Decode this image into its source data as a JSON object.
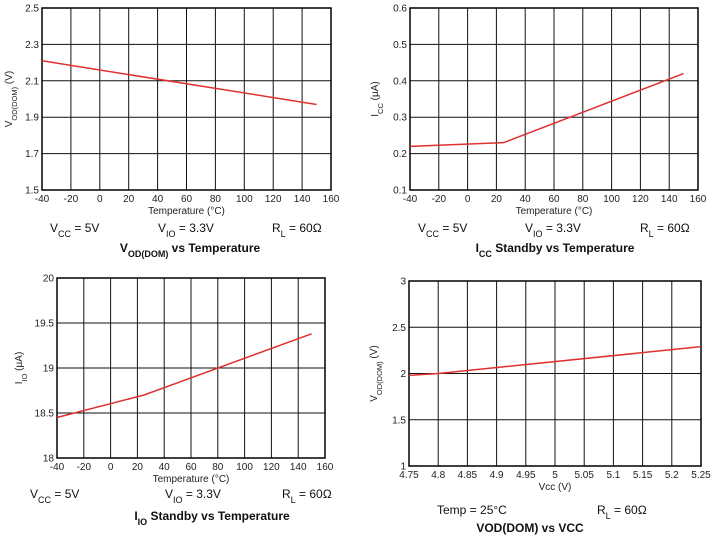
{
  "chart_data": [
    {
      "type": "line",
      "title": [
        {
          "t": "V"
        },
        {
          "t": "OD(DOM)",
          "sub": true
        },
        {
          "t": " vs Temperature"
        }
      ],
      "xlabel": [
        {
          "t": "Temperature (°C)"
        }
      ],
      "ylabel": [
        {
          "t": "V"
        },
        {
          "t": "OD(DOM)",
          "sub": true
        },
        {
          "t": " (V)"
        }
      ],
      "xlim": [
        -40,
        160
      ],
      "ylim": [
        1.5,
        2.5
      ],
      "xticks": [
        "-40",
        "-20",
        "0",
        "20",
        "40",
        "60",
        "80",
        "100",
        "120",
        "140",
        "160"
      ],
      "yticks": [
        "1.5",
        "1.7",
        "1.9",
        "2.1",
        "2.3",
        "2.5"
      ],
      "grid": true,
      "series": [
        {
          "x": [
            -40,
            150
          ],
          "y": [
            2.21,
            1.97
          ],
          "color": "#e03030"
        }
      ],
      "conditions": [
        [
          {
            "t": "V"
          },
          {
            "t": "CC",
            "sub": true
          },
          {
            "t": " = 5V"
          }
        ],
        [
          {
            "t": "V"
          },
          {
            "t": "IO",
            "sub": true
          },
          {
            "t": " = 3.3V"
          }
        ],
        [
          {
            "t": "R"
          },
          {
            "t": "L",
            "sub": true
          },
          {
            "t": " = 60Ω"
          }
        ]
      ]
    },
    {
      "type": "line",
      "title": [
        {
          "t": "I"
        },
        {
          "t": "CC",
          "sub": true
        },
        {
          "t": " Standby vs Temperature"
        }
      ],
      "xlabel": [
        {
          "t": "Temperature (°C)"
        }
      ],
      "ylabel": [
        {
          "t": "I"
        },
        {
          "t": "CC",
          "sub": true
        },
        {
          "t": " (µA)"
        }
      ],
      "xlim": [
        -40,
        160
      ],
      "ylim": [
        0.1,
        0.6
      ],
      "xticks": [
        "-40",
        "-20",
        "0",
        "20",
        "40",
        "60",
        "80",
        "100",
        "120",
        "140",
        "160"
      ],
      "yticks": [
        "0.1",
        "0.2",
        "0.3",
        "0.4",
        "0.5",
        "0.6"
      ],
      "grid": true,
      "series": [
        {
          "x": [
            -40,
            25,
            150
          ],
          "y": [
            0.22,
            0.23,
            0.42
          ],
          "color": "#e03030"
        }
      ],
      "conditions": [
        [
          {
            "t": "V"
          },
          {
            "t": "CC",
            "sub": true
          },
          {
            "t": " = 5V"
          }
        ],
        [
          {
            "t": "V"
          },
          {
            "t": "IO",
            "sub": true
          },
          {
            "t": " = 3.3V"
          }
        ],
        [
          {
            "t": "R"
          },
          {
            "t": "L",
            "sub": true
          },
          {
            "t": " = 60Ω"
          }
        ]
      ]
    },
    {
      "type": "line",
      "title": [
        {
          "t": "I"
        },
        {
          "t": "IO",
          "sub": true
        },
        {
          "t": " Standby vs Temperature"
        }
      ],
      "xlabel": [
        {
          "t": "Temperature (°C)"
        }
      ],
      "ylabel": [
        {
          "t": "I"
        },
        {
          "t": "IO",
          "sub": true
        },
        {
          "t": " (µA)"
        }
      ],
      "xlim": [
        -40,
        160
      ],
      "ylim": [
        18,
        20
      ],
      "xticks": [
        "-40",
        "-20",
        "0",
        "20",
        "40",
        "60",
        "80",
        "100",
        "120",
        "140",
        "160"
      ],
      "yticks": [
        "18",
        "18.5",
        "19",
        "19.5",
        "20"
      ],
      "grid": true,
      "series": [
        {
          "x": [
            -40,
            25,
            150
          ],
          "y": [
            18.45,
            18.7,
            19.38
          ],
          "color": "#e03030"
        }
      ],
      "conditions": [
        [
          {
            "t": "V"
          },
          {
            "t": "CC",
            "sub": true
          },
          {
            "t": " = 5V"
          }
        ],
        [
          {
            "t": "V"
          },
          {
            "t": "IO",
            "sub": true
          },
          {
            "t": " = 3.3V"
          }
        ],
        [
          {
            "t": "R"
          },
          {
            "t": "L",
            "sub": true
          },
          {
            "t": " = 60Ω"
          }
        ]
      ]
    },
    {
      "type": "line",
      "title": [
        {
          "t": "VOD(DOM) vs VCC"
        }
      ],
      "xlabel": [
        {
          "t": "Vcc (V)"
        }
      ],
      "ylabel": [
        {
          "t": "V"
        },
        {
          "t": "OD(DOM)",
          "sub": true
        },
        {
          "t": " (V)"
        }
      ],
      "xlim": [
        4.75,
        5.25
      ],
      "ylim": [
        1,
        3
      ],
      "xticks": [
        "4.75",
        "4.8",
        "4.85",
        "4.9",
        "4.95",
        "5",
        "5.05",
        "5.1",
        "5.15",
        "5.2",
        "5.25"
      ],
      "yticks": [
        "1",
        "1.5",
        "2",
        "2.5",
        "3"
      ],
      "grid": true,
      "series": [
        {
          "x": [
            4.75,
            4.8,
            5.25
          ],
          "y": [
            1.98,
            2.0,
            2.29
          ],
          "color": "#e03030"
        }
      ],
      "conditions": [
        [
          {
            "t": "Temp = 25°C"
          }
        ],
        [
          {
            "t": "R"
          },
          {
            "t": "L",
            "sub": true
          },
          {
            "t": " = 60Ω"
          }
        ]
      ]
    }
  ]
}
